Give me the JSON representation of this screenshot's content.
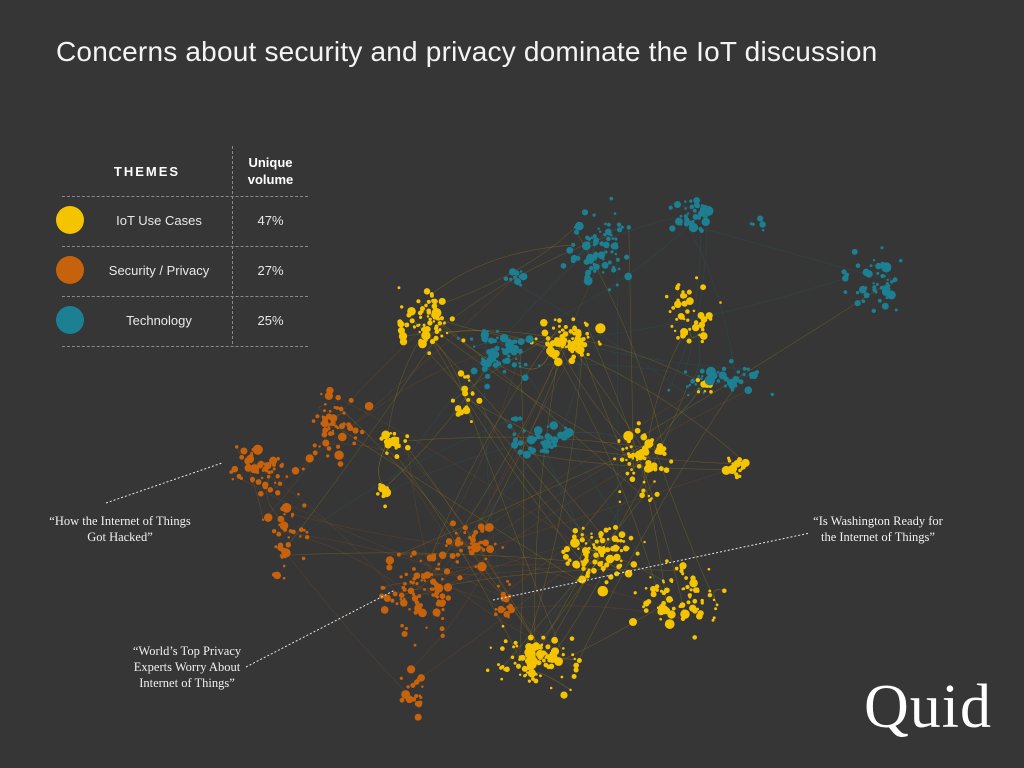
{
  "title": "Concerns about security and privacy dominate the IoT discussion",
  "legend": {
    "header_themes": "THEMES",
    "header_volume_line1": "Unique",
    "header_volume_line2": "volume",
    "rows": [
      {
        "label": "IoT Use Cases",
        "value": "47%",
        "color": "#f5c400"
      },
      {
        "label": "Security / Privacy",
        "value": "27%",
        "color": "#c7620c"
      },
      {
        "label": "Technology",
        "value": "25%",
        "color": "#1d7f92"
      }
    ]
  },
  "annotations": [
    {
      "lines": [
        "“How the Internet of Things",
        "Got Hacked”"
      ]
    },
    {
      "lines": [
        "“Is Washington Ready for",
        "the Internet of Things”"
      ]
    },
    {
      "lines": [
        "“World’s Top Privacy",
        "Experts Worry About",
        "Internet of Things”"
      ]
    }
  ],
  "logo_text": "Quid",
  "colors": {
    "background": "#363636",
    "iot_use_cases": "#f5c400",
    "security_privacy": "#c7620c",
    "technology": "#1d7f92"
  }
}
